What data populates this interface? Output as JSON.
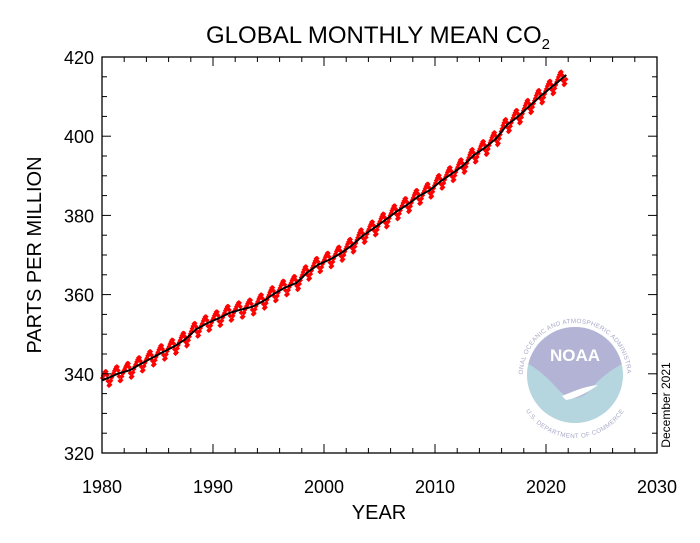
{
  "chart_data": {
    "type": "scatter",
    "title": "GLOBAL MONTHLY MEAN CO",
    "title_subscript": "2",
    "xlabel": "YEAR",
    "ylabel": "PARTS PER MILLION",
    "xlim": [
      1980,
      2030
    ],
    "ylim": [
      320,
      420
    ],
    "xticks": [
      "1980",
      "1990",
      "2000",
      "2010",
      "2020",
      "2030"
    ],
    "yticks": [
      "320",
      "340",
      "360",
      "380",
      "400",
      "420"
    ],
    "grid": false,
    "annotation": "December 2021",
    "series": [
      {
        "kind": "monthly-mean",
        "marker": "diamond",
        "color": "#ff0000",
        "annual_means": {
          "years": [
            1980,
            1981,
            1982,
            1983,
            1984,
            1985,
            1986,
            1987,
            1988,
            1989,
            1990,
            1991,
            1992,
            1993,
            1994,
            1995,
            1996,
            1997,
            1998,
            1999,
            2000,
            2001,
            2002,
            2003,
            2004,
            2005,
            2006,
            2007,
            2008,
            2009,
            2010,
            2011,
            2012,
            2013,
            2014,
            2015,
            2016,
            2017,
            2018,
            2019,
            2020,
            2021
          ],
          "values": [
            338.9,
            340.1,
            340.9,
            342.5,
            344.0,
            345.5,
            346.9,
            348.7,
            351.3,
            352.8,
            354.0,
            355.4,
            356.2,
            356.9,
            358.3,
            360.2,
            361.8,
            362.9,
            365.6,
            367.6,
            368.8,
            370.4,
            372.4,
            374.9,
            376.8,
            378.8,
            380.9,
            382.7,
            384.8,
            386.3,
            388.6,
            390.5,
            392.5,
            395.2,
            397.1,
            399.4,
            402.9,
            405.0,
            407.6,
            410.1,
            412.4,
            414.7
          ]
        },
        "seasonal_offsets_jan_to_dec": [
          0.6,
          1.1,
          1.5,
          1.9,
          1.8,
          0.8,
          -0.8,
          -2.0,
          -1.9,
          -1.0,
          -0.3,
          0.2
        ],
        "last_month": "2021-10"
      },
      {
        "kind": "trend",
        "color": "#000000"
      }
    ]
  },
  "logo": {
    "label": "NOAA",
    "ring_text_top": "NATIONAL OCEANIC AND ATMOSPHERIC ADMINISTRATION",
    "ring_text_bottom": "U.S. DEPARTMENT OF COMMERCE",
    "colors": {
      "upper": "#b3b3d6",
      "lower": "#b5d5df",
      "ring_text": "#a9a9c9"
    }
  }
}
